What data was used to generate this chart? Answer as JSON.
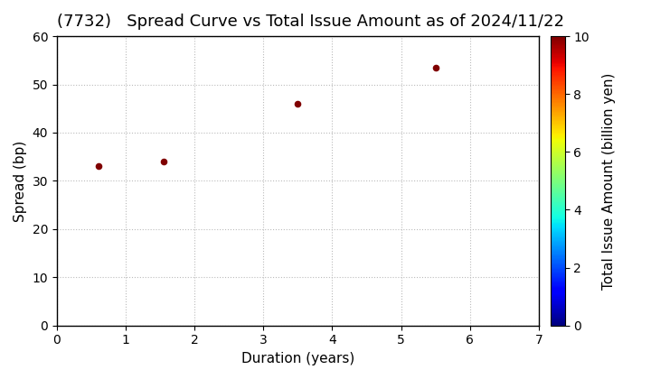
{
  "title": "(7732)   Spread Curve vs Total Issue Amount as of 2024/11/22",
  "xlabel": "Duration (years)",
  "ylabel": "Spread (bp)",
  "colorbar_label": "Total Issue Amount (billion yen)",
  "xlim": [
    0,
    7
  ],
  "ylim": [
    0,
    60
  ],
  "xticks": [
    0,
    1,
    2,
    3,
    4,
    5,
    6,
    7
  ],
  "yticks": [
    0,
    10,
    20,
    30,
    40,
    50,
    60
  ],
  "points": [
    {
      "duration": 0.6,
      "spread": 33,
      "amount": 10
    },
    {
      "duration": 1.55,
      "spread": 34,
      "amount": 10
    },
    {
      "duration": 3.5,
      "spread": 46,
      "amount": 10
    },
    {
      "duration": 5.5,
      "spread": 53.5,
      "amount": 10
    }
  ],
  "colormap": "jet",
  "clim": [
    0,
    10
  ],
  "marker_size": 30,
  "background_color": "#ffffff",
  "grid_color": "#bbbbbb",
  "title_fontsize": 13,
  "axis_fontsize": 11,
  "colorbar_ticks": [
    0,
    2,
    4,
    6,
    8,
    10
  ]
}
